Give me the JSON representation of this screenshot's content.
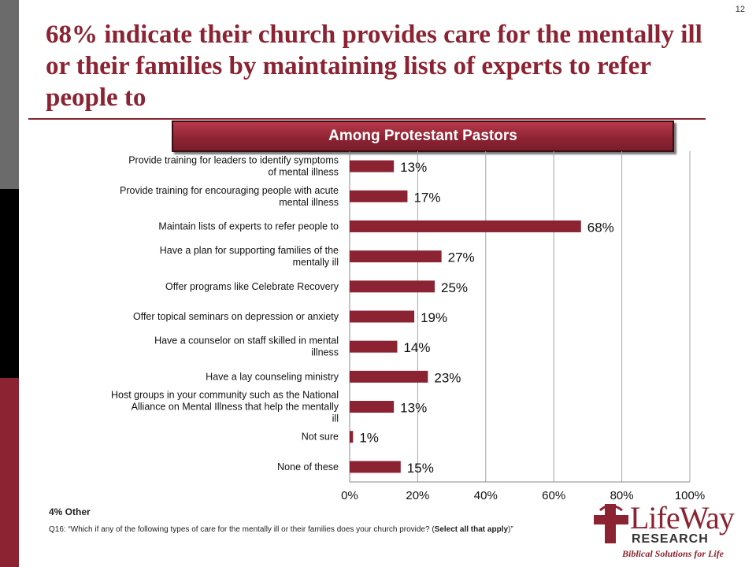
{
  "page_number": "12",
  "title": "68% indicate their church provides care for the mentally ill or their families by maintaining lists of experts to refer people to",
  "banner": "Among Protestant Pastors",
  "other_note": "4% Other",
  "footnote": {
    "prefix": "Q16: “Which if any of the following types of care for the mentally ill or their families does your church provide? (",
    "bold": "Select all that apply",
    "suffix": ")”"
  },
  "logo": {
    "brand": "LifeWay",
    "research": "RESEARCH",
    "tagline": "Biblical Solutions for Life"
  },
  "colors": {
    "accent": "#8b2332",
    "bar": "#8b2332"
  },
  "chart_data": {
    "type": "bar",
    "orientation": "horizontal",
    "categories": [
      "Provide training for leaders to identify symptoms of mental illness",
      "Provide training for encouraging people with acute mental illness",
      "Maintain lists of experts to refer people to",
      "Have a plan for supporting families of the mentally ill",
      "Offer programs like Celebrate Recovery",
      "Offer topical seminars on depression or anxiety",
      "Have a counselor on staff skilled in mental illness",
      "Have a lay counseling ministry",
      "Host groups in your community such as the National Alliance on Mental Illness that help the mentally ill",
      "Not sure",
      "None of these"
    ],
    "values": [
      13,
      17,
      68,
      27,
      25,
      19,
      14,
      23,
      13,
      1,
      15
    ],
    "data_labels": [
      "13%",
      "17%",
      "68%",
      "27%",
      "25%",
      "19%",
      "14%",
      "23%",
      "13%",
      "1%",
      "15%"
    ],
    "xlim": [
      0,
      100
    ],
    "xticks": [
      "0%",
      "20%",
      "40%",
      "60%",
      "80%",
      "100%"
    ],
    "xlabel": "",
    "ylabel": "",
    "grid": true,
    "legend": "none"
  }
}
